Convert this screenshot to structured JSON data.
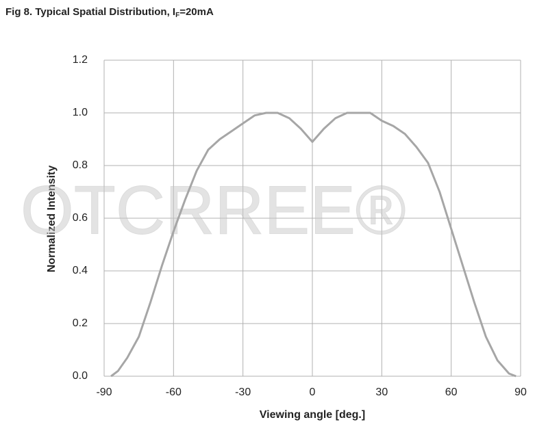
{
  "chart_data": {
    "type": "line",
    "title": [
      "Fig 8. Typical Spatial Distribution, I",
      "F",
      "=20mA"
    ],
    "watermark": "OTCRREE®",
    "x_label": "Viewing angle [deg.]",
    "y_label": "Normalized Intensity",
    "x": [
      -87,
      -84,
      -80,
      -75,
      -70,
      -65,
      -60,
      -55,
      -50,
      -45,
      -40,
      -35,
      -30,
      -25,
      -20,
      -15,
      -10,
      -5,
      0,
      5,
      10,
      15,
      20,
      25,
      30,
      35,
      40,
      45,
      50,
      55,
      60,
      65,
      70,
      75,
      80,
      85,
      88
    ],
    "series": [
      {
        "name": "Normalized Intensity",
        "color": "#a6a6a6",
        "values": [
          0.0,
          0.02,
          0.07,
          0.15,
          0.28,
          0.42,
          0.55,
          0.67,
          0.78,
          0.86,
          0.9,
          0.93,
          0.96,
          0.99,
          1.0,
          1.0,
          0.98,
          0.94,
          0.89,
          0.94,
          0.98,
          1.0,
          1.0,
          1.0,
          0.97,
          0.95,
          0.92,
          0.87,
          0.81,
          0.7,
          0.56,
          0.42,
          0.28,
          0.15,
          0.06,
          0.01,
          0.0
        ]
      }
    ],
    "xlim": [
      -90,
      90
    ],
    "xticks": [
      -90,
      -60,
      -30,
      0,
      30,
      60,
      90
    ],
    "ylim": [
      0,
      1.2
    ],
    "yticks": [
      {
        "value": 0,
        "label": "0.0"
      },
      0.2,
      0.4,
      0.6,
      0.8,
      {
        "value": 1,
        "label": "1.0"
      },
      1.2
    ],
    "grid": true
  }
}
